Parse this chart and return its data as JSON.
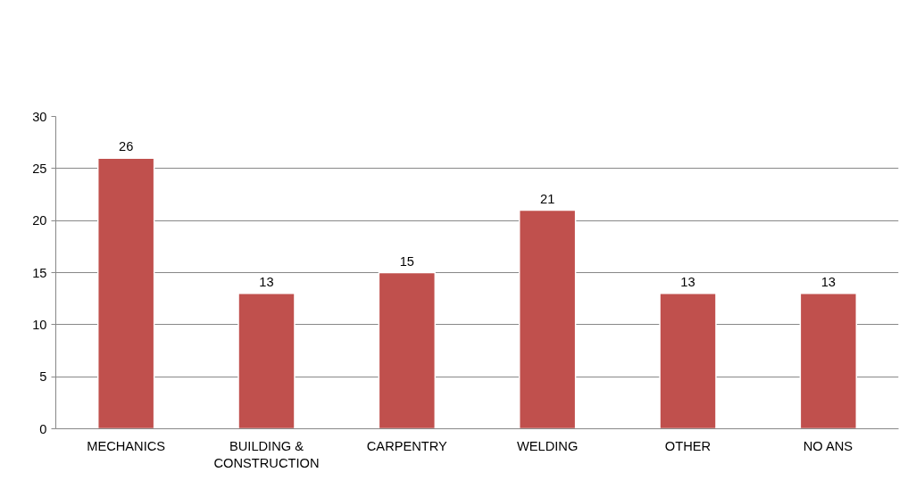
{
  "chart_data": {
    "type": "bar",
    "categories": [
      "MECHANICS",
      "BUILDING & CONSTRUCTION",
      "CARPENTRY",
      "WELDING",
      "OTHER",
      "NO ANS"
    ],
    "values": [
      26,
      13,
      15,
      21,
      13,
      13
    ],
    "color": "#c0504d",
    "ylim": [
      0,
      30
    ],
    "yticks": [
      0,
      5,
      10,
      15,
      20,
      25,
      30
    ],
    "grid": "y",
    "data_labels": true
  }
}
